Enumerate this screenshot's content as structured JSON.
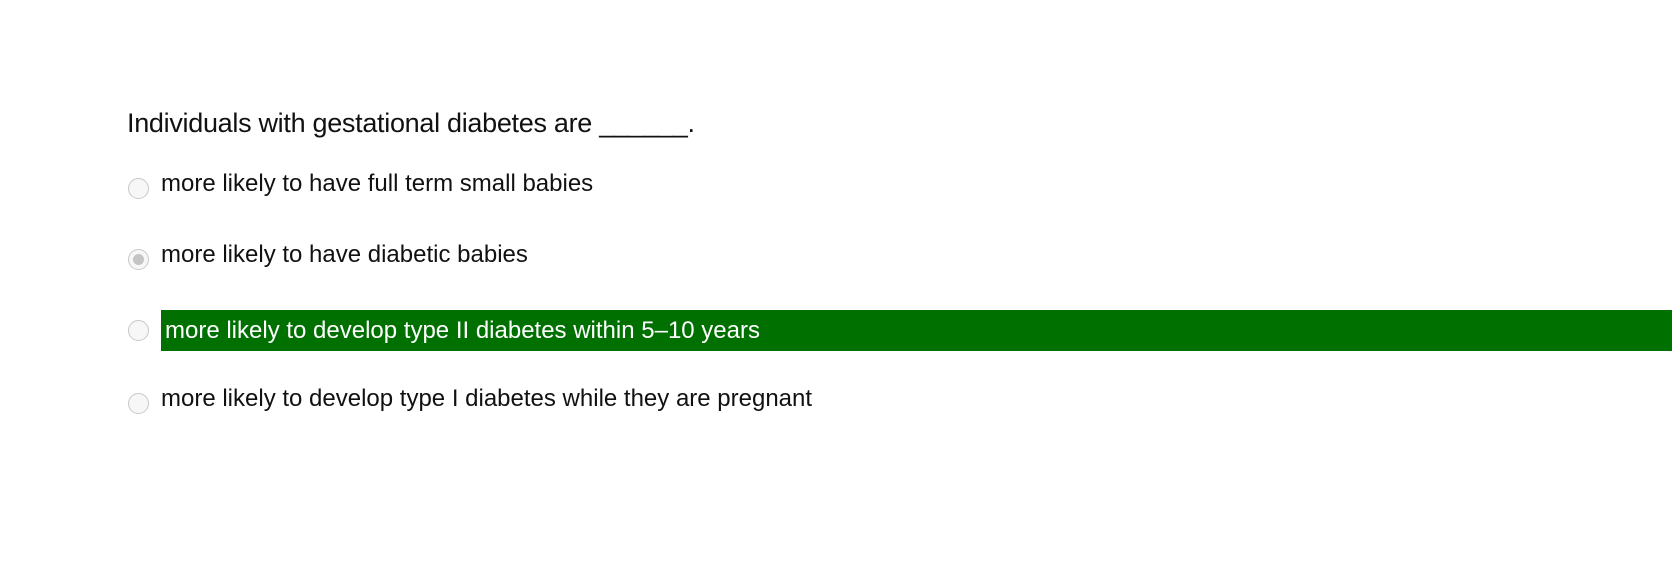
{
  "question": "Individuals with gestational diabetes are ______.",
  "options": [
    {
      "label": "more likely to have full term small babies",
      "selected": false,
      "correct": false
    },
    {
      "label": "more likely to have diabetic babies",
      "selected": true,
      "correct": false
    },
    {
      "label": "more likely to develop type II diabetes within 5–10 years",
      "selected": false,
      "correct": true
    },
    {
      "label": "more likely to develop type I diabetes while they are pregnant",
      "selected": false,
      "correct": false
    }
  ],
  "colors": {
    "correct_highlight": "#007000"
  }
}
